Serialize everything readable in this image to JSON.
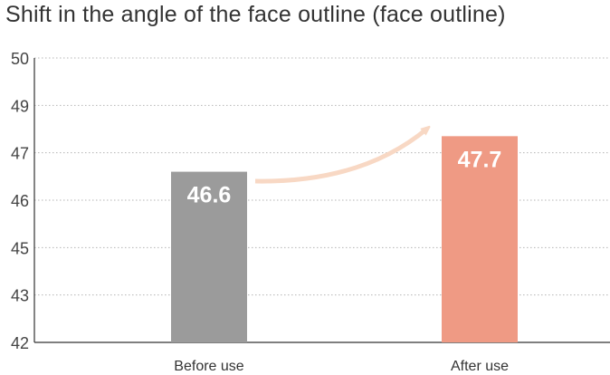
{
  "chart_data": {
    "type": "bar",
    "title": "Shift in the angle of the face outline (face outline)",
    "categories": [
      "Before use",
      "After use"
    ],
    "values": [
      46.6,
      47.7
    ],
    "value_labels": [
      "46.6",
      "47.7"
    ],
    "y_ticks": [
      "42",
      "43",
      "45",
      "46",
      "47",
      "49",
      "50"
    ],
    "xlabel": "",
    "ylabel": "",
    "grid": true,
    "bar_colors": [
      "#9b9b9b",
      "#ef9a84"
    ],
    "arrow_color": "#f8d8c4",
    "annotation": "arrow from Before use to After use"
  }
}
